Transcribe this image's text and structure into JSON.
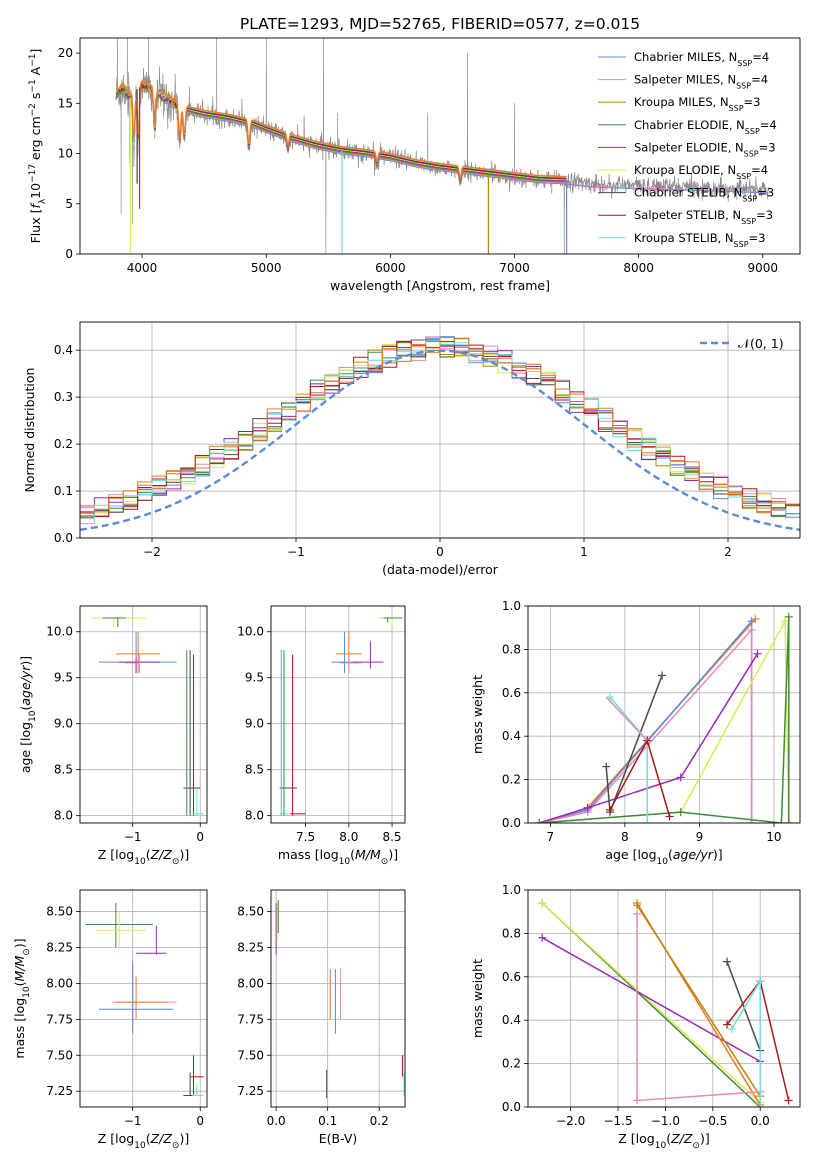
{
  "title": "PLATE=1293, MJD=52765, FIBERID=0577, z=0.015",
  "colors": {
    "Chabrier MILES": "#5b8ad8",
    "Salpeter MILES": "#e887b8",
    "Kroupa MILES": "#b8860b",
    "Chabrier ELODIE": "#3d8c3d",
    "Salpeter ELODIE": "#9a28b8",
    "Kroupa ELODIE": "#d8ec50",
    "Chabrier STELIB": "#4a4a4a",
    "Salpeter STELIB": "#a81818",
    "Kroupa STELIB": "#70dede",
    "orange": "#f07a22",
    "gray": "#8a8a8a",
    "normal": "#5b8ad8"
  },
  "chart_data": [
    {
      "id": "spectrum",
      "type": "line",
      "xlabel": "wavelength [Angstrom, rest frame]",
      "ylabel": "Flux [f_λ10^-17 erg cm^-2 s^-1 A^-1]",
      "xlim": [
        3500,
        9300
      ],
      "ylim": [
        0,
        21.5
      ],
      "xticks": [
        4000,
        5000,
        6000,
        7000,
        8000,
        9000
      ],
      "yticks": [
        0,
        5,
        10,
        15,
        20
      ],
      "legend_position": "top-right",
      "legend": [
        {
          "label": "Chabrier MILES, N",
          "sub": "SSP",
          "eq": "=4"
        },
        {
          "label": "Salpeter MILES, N",
          "sub": "SSP",
          "eq": "=4"
        },
        {
          "label": "Kroupa MILES, N",
          "sub": "SSP",
          "eq": "=3"
        },
        {
          "label": "Chabrier ELODIE, N",
          "sub": "SSP",
          "eq": "=4"
        },
        {
          "label": "Salpeter ELODIE, N",
          "sub": "SSP",
          "eq": "=3"
        },
        {
          "label": "Kroupa ELODIE, N",
          "sub": "SSP",
          "eq": "=4"
        },
        {
          "label": "Chabrier STELIB, N",
          "sub": "SSP",
          "eq": "=3"
        },
        {
          "label": "Salpeter STELIB, N",
          "sub": "SSP",
          "eq": "=3"
        },
        {
          "label": "Kroupa STELIB, N",
          "sub": "SSP",
          "eq": "=3"
        }
      ],
      "continuum": [
        [
          3790,
          15.8
        ],
        [
          3850,
          16.5
        ],
        [
          3900,
          15.5
        ],
        [
          3950,
          16.3
        ],
        [
          4000,
          16.8
        ],
        [
          4100,
          16.2
        ],
        [
          4200,
          15.4
        ],
        [
          4300,
          14.6
        ],
        [
          4400,
          14.2
        ],
        [
          4500,
          13.9
        ],
        [
          4700,
          13.5
        ],
        [
          4900,
          12.9
        ],
        [
          5000,
          12.4
        ],
        [
          5200,
          11.5
        ],
        [
          5400,
          10.8
        ],
        [
          5600,
          10.3
        ],
        [
          5800,
          10.0
        ],
        [
          6000,
          9.6
        ],
        [
          6200,
          9.0
        ],
        [
          6400,
          8.6
        ],
        [
          6600,
          8.3
        ],
        [
          6800,
          8.0
        ],
        [
          7000,
          7.7
        ],
        [
          7200,
          7.4
        ],
        [
          7420,
          7.3
        ],
        [
          7600,
          7.0
        ],
        [
          7800,
          6.9
        ],
        [
          8000,
          6.8
        ],
        [
          8300,
          6.7
        ],
        [
          8600,
          6.6
        ],
        [
          8800,
          6.5
        ],
        [
          9050,
          6.4
        ]
      ]
    },
    {
      "id": "residuals",
      "type": "bar",
      "xlabel": "(data-model)/error",
      "ylabel": "Normed distribution",
      "xlim": [
        -2.5,
        2.5
      ],
      "ylim": [
        0,
        0.46
      ],
      "xticks": [
        -2,
        -1,
        0,
        1,
        2
      ],
      "yticks": [
        0.0,
        0.1,
        0.2,
        0.3,
        0.4
      ],
      "legend_label": "𝒩(0, 1)",
      "legend_position": "top-right"
    },
    {
      "id": "age_vs_Z",
      "type": "scatter",
      "xlabel": "Z [log10(Z/Z⊙)]",
      "ylabel": "age  [log10(age/yr)]",
      "xlim": [
        -1.78,
        0.1
      ],
      "ylim": [
        7.92,
        10.28
      ],
      "xticks": [
        -1,
        0
      ],
      "yticks": [
        8.0,
        8.5,
        9.0,
        9.5,
        10.0
      ]
    },
    {
      "id": "age_vs_mass",
      "type": "scatter",
      "xlabel": "mass [log10(M/M⊙)]",
      "ylabel": "",
      "xlim": [
        7.1,
        8.65
      ],
      "ylim": [
        7.92,
        10.28
      ],
      "xticks": [
        7.5,
        8.0,
        8.5
      ],
      "yticks": [
        8.0,
        8.5,
        9.0,
        9.5,
        10.0
      ]
    },
    {
      "id": "weight_vs_age",
      "type": "line",
      "xlabel": "age  [log10(age/yr)]",
      "ylabel": "mass weight",
      "xlim": [
        6.7,
        10.35
      ],
      "ylim": [
        0,
        1.0
      ],
      "xticks": [
        7,
        8,
        9,
        10
      ],
      "yticks": [
        0.0,
        0.2,
        0.4,
        0.6,
        0.8,
        1.0
      ]
    },
    {
      "id": "mass_vs_Z",
      "type": "scatter",
      "xlabel": "Z [log10(Z/Z⊙)]",
      "ylabel": "mass [log10(M/M⊙)]",
      "xlim": [
        -1.78,
        0.1
      ],
      "ylim": [
        7.14,
        8.65
      ],
      "xticks": [
        -1,
        0
      ],
      "yticks": [
        7.25,
        7.5,
        7.75,
        8.0,
        8.25,
        8.5
      ]
    },
    {
      "id": "mass_vs_ebv",
      "type": "scatter",
      "xlabel": "E(B-V)",
      "ylabel": "",
      "xlim": [
        -0.01,
        0.25
      ],
      "ylim": [
        7.14,
        8.65
      ],
      "xticks": [
        0.0,
        0.1,
        0.2
      ],
      "yticks": [
        7.25,
        7.5,
        7.75,
        8.0,
        8.25,
        8.5
      ]
    },
    {
      "id": "weight_vs_Z",
      "type": "line",
      "xlabel": "Z [log10(Z/Z⊙)]",
      "ylabel": "mass weight",
      "xlim": [
        -2.45,
        0.42
      ],
      "ylim": [
        0,
        1.0
      ],
      "xticks": [
        -2.0,
        -1.5,
        -1.0,
        -0.5,
        0.0
      ],
      "yticks": [
        0.0,
        0.2,
        0.4,
        0.6,
        0.8,
        1.0
      ]
    }
  ]
}
